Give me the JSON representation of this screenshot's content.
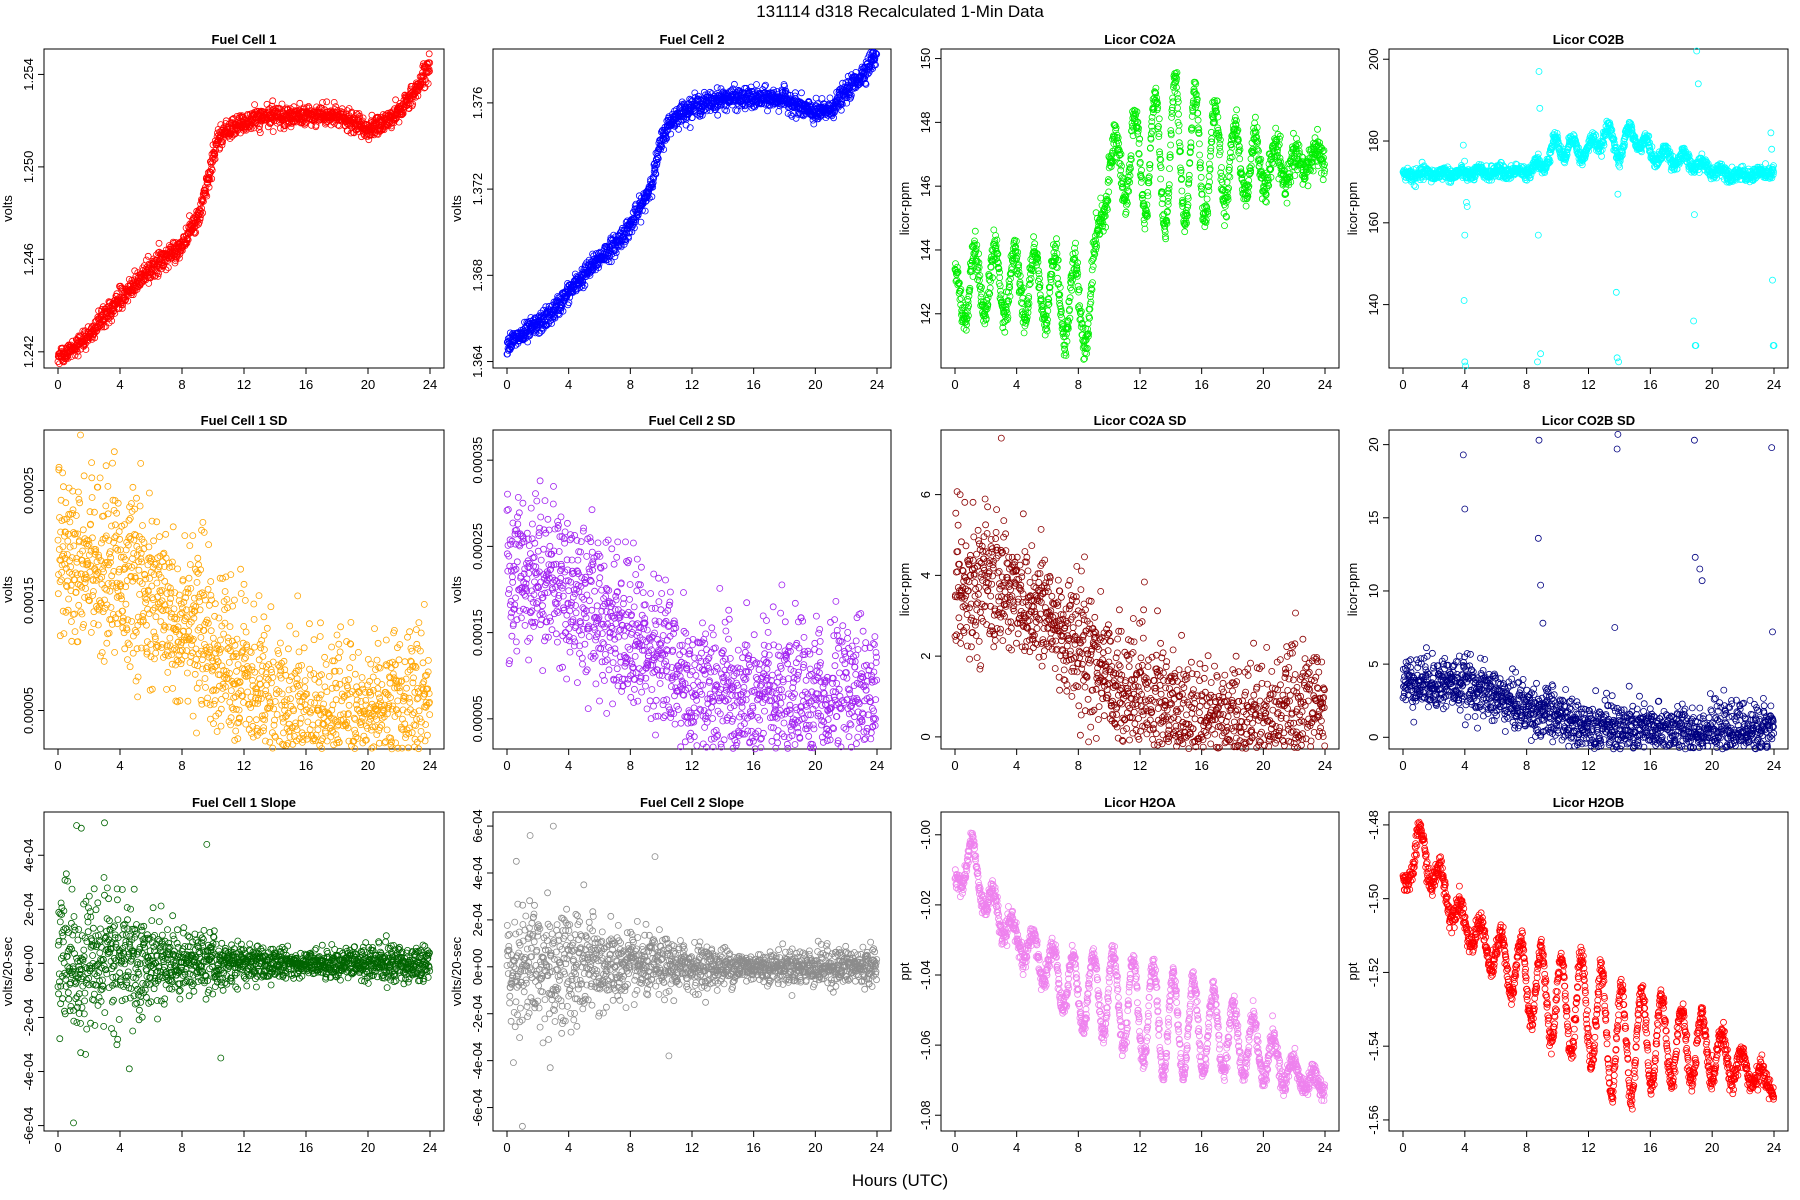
{
  "figure": {
    "title": "131114   d318   Recalculated 1-Min Data",
    "xlabel": "Hours (UTC)",
    "x_ticks": [
      0,
      4,
      8,
      12,
      16,
      20,
      24
    ],
    "x_range": [
      0,
      24
    ]
  },
  "chart_data": [
    {
      "type": "scatter",
      "title": "Fuel Cell 1",
      "ylabel": "volts",
      "color": "#ff0000",
      "ylim": [
        1.2413,
        1.2551
      ],
      "yticks": [
        1.242,
        1.246,
        1.25,
        1.254
      ],
      "ytick_labels": [
        "1.242",
        "1.246",
        "1.250",
        "1.254"
      ],
      "x": [
        0,
        1,
        2,
        3,
        4,
        5,
        6,
        7,
        8,
        9,
        9.5,
        10,
        10.5,
        11,
        12,
        13,
        14,
        15,
        16,
        17,
        18,
        19,
        20,
        21,
        22,
        23,
        24
      ],
      "y": [
        1.2418,
        1.2422,
        1.2427,
        1.2435,
        1.2443,
        1.2449,
        1.2456,
        1.2461,
        1.2466,
        1.2478,
        1.2488,
        1.2505,
        1.2513,
        1.2516,
        1.2519,
        1.2521,
        1.2522,
        1.2522,
        1.2522,
        1.2522,
        1.2522,
        1.2519,
        1.2516,
        1.2519,
        1.2524,
        1.2532,
        1.2545
      ],
      "noise": 0.00022
    },
    {
      "type": "scatter",
      "title": "Fuel Cell 2",
      "ylabel": "volts",
      "color": "#0000ff",
      "ylim": [
        1.3637,
        1.3785
      ],
      "yticks": [
        1.364,
        1.368,
        1.372,
        1.376
      ],
      "ytick_labels": [
        "1.364",
        "1.368",
        "1.372",
        "1.376"
      ],
      "x": [
        0,
        1,
        2,
        3,
        4,
        5,
        6,
        7,
        8,
        9,
        9.5,
        10,
        10.5,
        11,
        12,
        13,
        14,
        15,
        16,
        17,
        18,
        19,
        20,
        21,
        22,
        23,
        24
      ],
      "y": [
        1.3648,
        1.3652,
        1.3657,
        1.3663,
        1.3672,
        1.368,
        1.3688,
        1.3694,
        1.3703,
        1.3716,
        1.3726,
        1.3742,
        1.375,
        1.3754,
        1.3758,
        1.376,
        1.3762,
        1.3762,
        1.3762,
        1.3762,
        1.3762,
        1.3758,
        1.3755,
        1.3757,
        1.3765,
        1.3773,
        1.3783
      ],
      "noise": 0.00024
    },
    {
      "type": "scatter",
      "title": "Licor CO2A",
      "ylabel": "licor-ppm",
      "color": "#00ee00",
      "ylim": [
        140.3,
        150.3
      ],
      "yticks": [
        142,
        144,
        146,
        148,
        150
      ],
      "ytick_labels": [
        "142",
        "144",
        "146",
        "148",
        "150"
      ],
      "x": [
        0,
        2,
        4,
        6,
        8,
        9,
        9.5,
        10,
        12,
        14,
        15,
        16,
        18,
        20,
        22,
        24
      ],
      "y": [
        142.6,
        143.0,
        143.0,
        142.8,
        142.2,
        142.4,
        145.5,
        146.6,
        146.8,
        147.0,
        147.0,
        146.8,
        146.8,
        146.6,
        146.6,
        147.0
      ],
      "noise": 0.25,
      "osc_amp": [
        0.8,
        1.2,
        1.0,
        1.2,
        1.4,
        1.4,
        0.8,
        0.8,
        1.6,
        2.4,
        2.2,
        2.0,
        1.2,
        0.8,
        0.4,
        0.3
      ],
      "osc_period": 1.3,
      "outliers": []
    },
    {
      "type": "scatter",
      "title": "Licor CO2B",
      "ylabel": "licor-ppm",
      "color": "#00ffff",
      "ylim": [
        124.5,
        202.5
      ],
      "yticks": [
        140,
        160,
        180,
        200
      ],
      "ytick_labels": [
        "140",
        "160",
        "180",
        "200"
      ],
      "x": [
        0,
        2,
        4,
        6,
        8,
        9,
        10,
        12,
        13,
        14,
        15,
        16,
        18,
        20,
        22,
        24
      ],
      "y": [
        171.5,
        172.0,
        172.0,
        172.5,
        172.5,
        174.5,
        179.0,
        177.5,
        182.0,
        178.0,
        182.0,
        177.0,
        175.5,
        173.0,
        171.5,
        172.5
      ],
      "noise": 0.8,
      "osc_amp": [
        0.5,
        0.5,
        0.5,
        0.5,
        0.8,
        2,
        3,
        2,
        3,
        3,
        3,
        2,
        1.5,
        1,
        0.5,
        0.5
      ],
      "osc_period": 1.2,
      "outliers": [
        [
          3.9,
          179
        ],
        [
          3.95,
          141
        ],
        [
          4.0,
          126
        ],
        [
          4.05,
          125
        ],
        [
          4.1,
          165
        ],
        [
          4.15,
          164
        ],
        [
          4.0,
          157
        ],
        [
          8.7,
          126
        ],
        [
          8.75,
          157
        ],
        [
          8.8,
          197
        ],
        [
          8.85,
          188
        ],
        [
          8.9,
          128
        ],
        [
          13.8,
          143
        ],
        [
          13.85,
          127
        ],
        [
          13.9,
          167
        ],
        [
          13.95,
          126
        ],
        [
          18.8,
          136
        ],
        [
          18.85,
          162
        ],
        [
          19.0,
          202
        ],
        [
          19.1,
          194
        ],
        [
          18.9,
          130
        ],
        [
          18.95,
          130
        ],
        [
          23.8,
          182
        ],
        [
          23.85,
          178
        ],
        [
          23.9,
          146
        ],
        [
          23.95,
          130
        ],
        [
          24.0,
          130
        ]
      ]
    },
    {
      "type": "scatter",
      "title": "Fuel Cell 1 SD",
      "ylabel": "volts",
      "color": "#ffa500",
      "ylim": [
        1.5e-05,
        0.000305
      ],
      "yticks": [
        5e-05,
        0.00015,
        0.00025
      ],
      "ytick_labels": [
        "0.00005",
        "0.00015",
        "0.00025"
      ],
      "x": [
        0,
        2,
        4,
        6,
        8,
        10,
        11,
        12,
        13,
        14,
        16,
        18,
        20,
        22,
        24
      ],
      "y": [
        0.000195,
        0.00019,
        0.00018,
        0.00015,
        0.000125,
        0.00011,
        8.5e-05,
        6.5e-05,
        5.5e-05,
        4.5e-05,
        4e-05,
        3.5e-05,
        4e-05,
        5e-05,
        5.5e-05
      ],
      "noise": 3.8e-05,
      "osc_amp": [
        0,
        0,
        0,
        0,
        0,
        0,
        0,
        5e-06,
        8e-06,
        1e-05,
        1e-05,
        1e-05,
        8e-06,
        6e-06,
        6e-06
      ],
      "osc_period": 1.2,
      "outliers": []
    },
    {
      "type": "scatter",
      "title": "Fuel Cell 2 SD",
      "ylabel": "volts",
      "color": "#a020f0",
      "ylim": [
        1.5e-05,
        0.000385
      ],
      "yticks": [
        5e-05,
        0.00015,
        0.00025,
        0.00035
      ],
      "ytick_labels": [
        "0.00005",
        "0.00015",
        "0.00025",
        "0.00035"
      ],
      "x": [
        0,
        2,
        4,
        6,
        8,
        10,
        11,
        12,
        13,
        14,
        16,
        18,
        20,
        22,
        24
      ],
      "y": [
        0.000215,
        0.000225,
        0.0002,
        0.000175,
        0.00015,
        0.000125,
        0.0001,
        8e-05,
        7.5e-05,
        7e-05,
        6.5e-05,
        6.5e-05,
        6.5e-05,
        8e-05,
        8e-05
      ],
      "noise": 4.5e-05,
      "osc_amp": [
        0,
        0,
        0,
        0,
        0,
        0,
        0,
        1e-05,
        1.2e-05,
        1.5e-05,
        1.5e-05,
        1.5e-05,
        1.2e-05,
        1e-05,
        8e-06
      ],
      "osc_period": 1.2,
      "outliers": []
    },
    {
      "type": "scatter",
      "title": "Licor CO2A SD",
      "ylabel": "licor-ppm",
      "color": "#8b0000",
      "ylim": [
        -0.3,
        7.6
      ],
      "yticks": [
        0,
        2,
        4,
        6
      ],
      "ytick_labels": [
        "0",
        "2",
        "4",
        "6"
      ],
      "x": [
        0,
        2,
        4,
        6,
        8,
        10,
        11,
        12,
        14,
        16,
        18,
        19,
        20,
        22,
        24
      ],
      "y": [
        3.8,
        3.8,
        3.6,
        3.0,
        2.2,
        1.6,
        1.0,
        0.8,
        0.55,
        0.45,
        0.35,
        0.25,
        0.3,
        0.5,
        0.6
      ],
      "noise": 0.8,
      "osc_amp": [
        0,
        0,
        0,
        0,
        0,
        0,
        0,
        0.15,
        0.15,
        0.15,
        0.1,
        0.1,
        0.1,
        0.1,
        0.1
      ],
      "osc_period": 1.2,
      "outliers": [
        [
          3.0,
          7.4
        ]
      ]
    },
    {
      "type": "scatter",
      "title": "Licor CO2B SD",
      "ylabel": "licor-ppm",
      "color": "#000080",
      "ylim": [
        -0.8,
        21.0
      ],
      "yticks": [
        0,
        5,
        10,
        15,
        20
      ],
      "ytick_labels": [
        "0",
        "5",
        "10",
        "15",
        "20"
      ],
      "x": [
        0,
        2,
        4,
        6,
        8,
        10,
        11,
        12,
        14,
        16,
        18,
        20,
        22,
        24
      ],
      "y": [
        3.8,
        3.8,
        3.6,
        2.8,
        2.0,
        1.4,
        0.9,
        0.8,
        0.55,
        0.45,
        0.35,
        0.3,
        0.45,
        0.6
      ],
      "noise": 0.9,
      "outliers": [
        [
          3.9,
          19.3
        ],
        [
          4.0,
          15.6
        ],
        [
          8.8,
          20.3
        ],
        [
          8.75,
          13.6
        ],
        [
          8.9,
          10.4
        ],
        [
          9.05,
          7.8
        ],
        [
          13.7,
          7.5
        ],
        [
          13.85,
          19.7
        ],
        [
          13.9,
          20.7
        ],
        [
          18.85,
          20.3
        ],
        [
          18.9,
          12.3
        ],
        [
          19.2,
          11.5
        ],
        [
          19.35,
          10.7
        ],
        [
          19.2,
          2.0
        ],
        [
          23.85,
          19.8
        ],
        [
          23.9,
          7.2
        ]
      ]
    },
    {
      "type": "scatter",
      "title": "Fuel Cell 1 Slope",
      "ylabel": "volts/20-sec",
      "color": "#006400",
      "ylim": [
        -0.00062,
        0.00056
      ],
      "yticks": [
        -0.0006,
        -0.0004,
        -0.0002,
        0,
        0.0002,
        0.0004
      ],
      "ytick_labels": [
        "-6e-04",
        "-4e-04",
        "-2e-04",
        "0e+00",
        "2e-04",
        "4e-04"
      ],
      "x": [
        0,
        4,
        8,
        12,
        16,
        20,
        24
      ],
      "y": [
        0.0,
        0.0,
        0.0,
        0.0,
        0.0,
        0.0,
        0.0
      ],
      "noise_profile": [
        0.00012,
        0.00011,
        6e-05,
        4e-05,
        2e-05,
        3.5e-05,
        3.5e-05
      ],
      "outliers": [
        [
          1.0,
          -0.00059
        ],
        [
          1.2,
          0.00051
        ],
        [
          1.5,
          0.0005
        ],
        [
          3.0,
          0.00052
        ],
        [
          9.6,
          0.00044
        ],
        [
          10.5,
          -0.00035
        ],
        [
          4.6,
          -0.00039
        ]
      ]
    },
    {
      "type": "scatter",
      "title": "Fuel Cell 2 Slope",
      "ylabel": "volts/20-sec",
      "color": "#8c8c8c",
      "ylim": [
        -0.0007,
        0.00066
      ],
      "yticks": [
        -0.0006,
        -0.0004,
        -0.0002,
        0,
        0.0002,
        0.0004,
        0.0006
      ],
      "ytick_labels": [
        "-6e-04",
        "-4e-04",
        "-2e-04",
        "0e+00",
        "2e-04",
        "4e-04",
        "6e-04"
      ],
      "x": [
        0,
        4,
        8,
        12,
        16,
        20,
        24
      ],
      "y": [
        0.0,
        0.0,
        0.0,
        0.0,
        0.0,
        0.0,
        0.0
      ],
      "noise_profile": [
        0.00014,
        0.00013,
        7e-05,
        5e-05,
        3e-05,
        4e-05,
        4e-05
      ],
      "outliers": [
        [
          1.0,
          -0.00068
        ],
        [
          1.5,
          0.00056
        ],
        [
          3.0,
          0.0006
        ],
        [
          9.6,
          0.00047
        ],
        [
          0.6,
          0.00045
        ],
        [
          2.8,
          -0.00043
        ],
        [
          10.5,
          -0.00038
        ]
      ]
    },
    {
      "type": "scatter",
      "title": "Licor H2OA",
      "ylabel": "ppt",
      "color": "#ee82ee",
      "ylim": [
        -1.0845,
        -0.9935
      ],
      "yticks": [
        -1.08,
        -1.06,
        -1.04,
        -1.02,
        -1.0
      ],
      "ytick_labels": [
        "-1.08",
        "-1.06",
        "-1.04",
        "-1.02",
        "-1.00"
      ],
      "x": [
        0,
        1,
        2,
        4,
        6,
        8,
        10,
        12,
        14,
        16,
        18,
        20,
        22,
        24
      ],
      "y": [
        -1.015,
        -1.005,
        -1.018,
        -1.03,
        -1.037,
        -1.045,
        -1.045,
        -1.05,
        -1.055,
        -1.055,
        -1.058,
        -1.062,
        -1.068,
        -1.072
      ],
      "noise": 0.0015,
      "osc_amp": [
        0.003,
        0.005,
        0.005,
        0.004,
        0.006,
        0.01,
        0.012,
        0.014,
        0.015,
        0.013,
        0.01,
        0.008,
        0.004,
        0.002
      ],
      "osc_period": 1.3,
      "outliers": []
    },
    {
      "type": "scatter",
      "title": "Licor H2OB",
      "ylabel": "ppt",
      "color": "#ff0000",
      "ylim": [
        -1.563,
        -1.4765
      ],
      "yticks": [
        -1.56,
        -1.54,
        -1.52,
        -1.5,
        -1.48
      ],
      "ytick_labels": [
        "-1.56",
        "-1.54",
        "-1.52",
        "-1.50",
        "-1.48"
      ],
      "x": [
        0,
        1,
        2,
        4,
        6,
        8,
        10,
        12,
        14,
        16,
        18,
        20,
        22,
        24
      ],
      "y": [
        -1.497,
        -1.485,
        -1.493,
        -1.507,
        -1.515,
        -1.522,
        -1.528,
        -1.53,
        -1.54,
        -1.538,
        -1.54,
        -1.541,
        -1.546,
        -1.551
      ],
      "noise": 0.0015,
      "osc_amp": [
        0.003,
        0.005,
        0.005,
        0.004,
        0.006,
        0.01,
        0.012,
        0.014,
        0.016,
        0.013,
        0.01,
        0.008,
        0.004,
        0.002
      ],
      "osc_period": 1.3,
      "outliers": []
    }
  ]
}
